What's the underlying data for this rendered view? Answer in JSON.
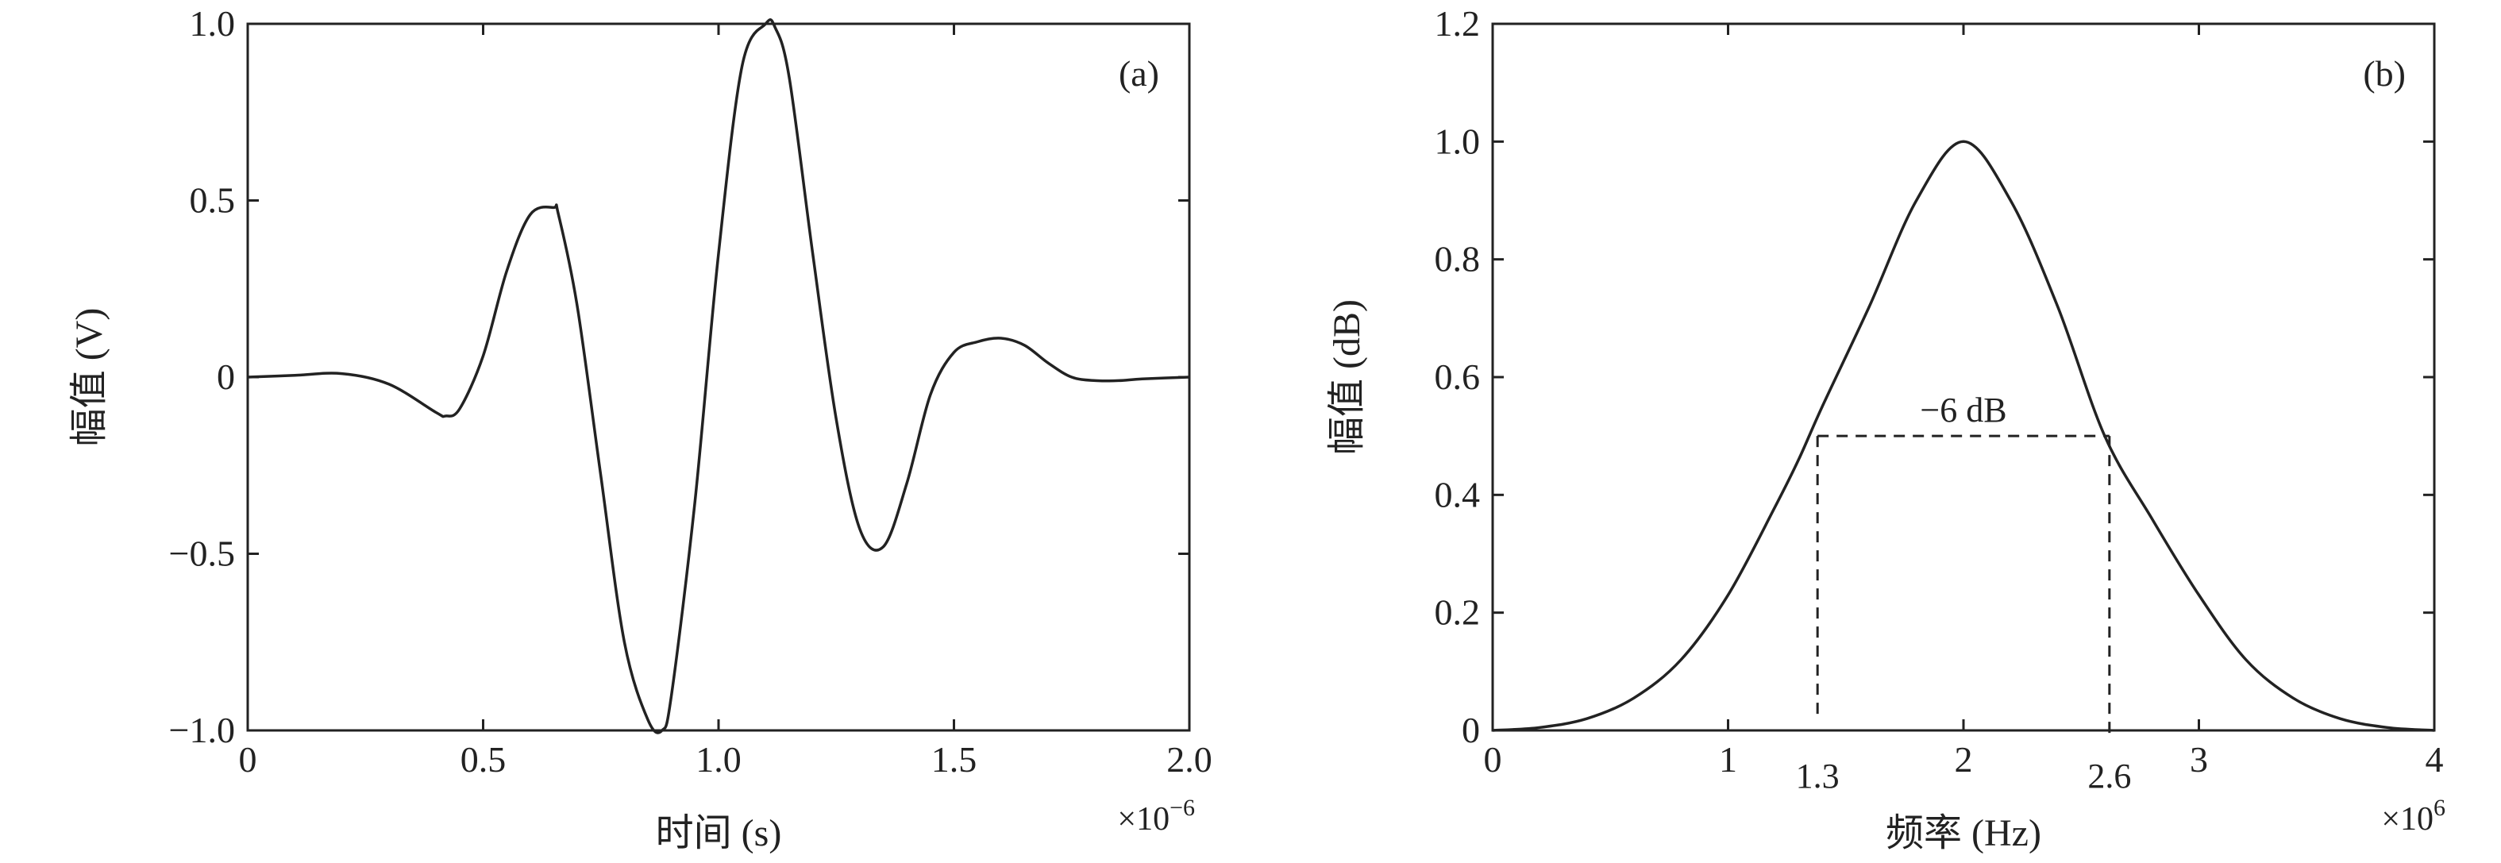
{
  "chart_data": [
    {
      "panel": "(a)",
      "type": "line",
      "xlabel": "时间 (s)",
      "ylabel": "幅值 (V)",
      "x_multiplier": "×10",
      "x_multiplier_exp": "−6",
      "xlim": [
        0,
        2.0
      ],
      "ylim": [
        -1.0,
        1.0
      ],
      "xticks": [
        {
          "v": 0,
          "label": "0"
        },
        {
          "v": 0.5,
          "label": "0.5"
        },
        {
          "v": 1.0,
          "label": "1.0"
        },
        {
          "v": 1.5,
          "label": "1.5"
        },
        {
          "v": 2.0,
          "label": "2.0"
        }
      ],
      "yticks": [
        {
          "v": -1.0,
          "label": "−1.0"
        },
        {
          "v": -0.5,
          "label": "−0.5"
        },
        {
          "v": 0,
          "label": "0"
        },
        {
          "v": 0.5,
          "label": "0.5"
        },
        {
          "v": 1.0,
          "label": "1.0"
        }
      ],
      "series": [
        {
          "x": [
            0,
            0.1,
            0.2,
            0.3,
            0.4,
            0.42,
            0.45,
            0.5,
            0.55,
            0.6,
            0.65,
            0.66,
            0.7,
            0.75,
            0.8,
            0.85,
            0.88,
            0.9,
            0.95,
            1.0,
            1.05,
            1.1,
            1.12,
            1.15,
            1.2,
            1.25,
            1.3,
            1.35,
            1.4,
            1.45,
            1.5,
            1.55,
            1.6,
            1.65,
            1.7,
            1.75,
            1.8,
            1.85,
            1.9,
            2.0
          ],
          "y": [
            0.0,
            0.005,
            0.01,
            -0.02,
            -0.1,
            -0.11,
            -0.09,
            0.06,
            0.3,
            0.46,
            0.48,
            0.46,
            0.2,
            -0.28,
            -0.75,
            -0.97,
            -1.0,
            -0.9,
            -0.35,
            0.35,
            0.88,
            1.0,
            0.99,
            0.85,
            0.35,
            -0.12,
            -0.43,
            -0.48,
            -0.3,
            -0.05,
            0.07,
            0.1,
            0.11,
            0.09,
            0.04,
            0.0,
            -0.01,
            -0.01,
            -0.005,
            0.0
          ]
        }
      ],
      "annotations": []
    },
    {
      "panel": "(b)",
      "type": "line",
      "xlabel": "频率 (Hz)",
      "ylabel": "幅值 (dB)",
      "x_multiplier": "×10",
      "x_multiplier_exp": "6",
      "xlim": [
        0,
        4
      ],
      "ylim": [
        0,
        1.2
      ],
      "xticks": [
        {
          "v": 0,
          "label": "0"
        },
        {
          "v": 1,
          "label": "1"
        },
        {
          "v": 2,
          "label": "2"
        },
        {
          "v": 3,
          "label": "3"
        },
        {
          "v": 4,
          "label": "4"
        }
      ],
      "yticks": [
        {
          "v": 0,
          "label": "0"
        },
        {
          "v": 0.2,
          "label": "0.2"
        },
        {
          "v": 0.4,
          "label": "0.4"
        },
        {
          "v": 0.6,
          "label": "0.6"
        },
        {
          "v": 0.8,
          "label": "0.8"
        },
        {
          "v": 1.0,
          "label": "1.0"
        },
        {
          "v": 1.2,
          "label": "1.2"
        }
      ],
      "series": [
        {
          "x": [
            0,
            0.2,
            0.4,
            0.6,
            0.8,
            1.0,
            1.2,
            1.3,
            1.4,
            1.6,
            1.8,
            2.0,
            2.2,
            2.4,
            2.6,
            2.8,
            3.0,
            3.2,
            3.4,
            3.6,
            3.8,
            4.0
          ],
          "y": [
            0.0,
            0.005,
            0.02,
            0.055,
            0.12,
            0.23,
            0.38,
            0.46,
            0.55,
            0.72,
            0.9,
            1.0,
            0.9,
            0.72,
            0.5,
            0.36,
            0.23,
            0.12,
            0.055,
            0.02,
            0.005,
            0.0
          ]
        }
      ],
      "annotations": [
        {
          "type": "marker",
          "label": "−6 dB",
          "x1": 1.38,
          "x2": 2.62,
          "y": 0.5
        },
        {
          "type": "xlabel",
          "label": "1.3",
          "x": 1.38
        },
        {
          "type": "xlabel",
          "label": "2.6",
          "x": 2.62
        }
      ]
    }
  ]
}
